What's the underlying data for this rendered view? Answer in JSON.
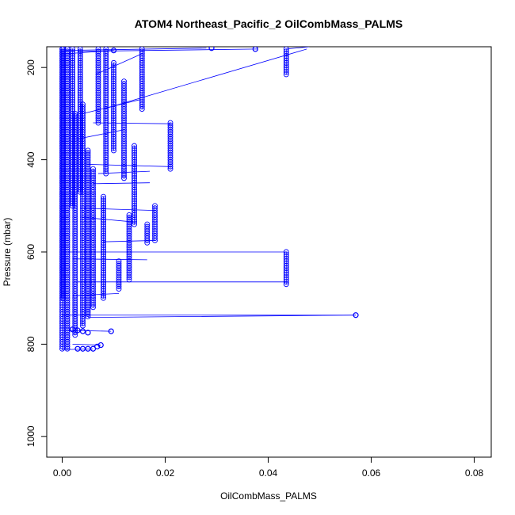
{
  "chart_data": {
    "type": "scatter",
    "title": "ATOM4 Northeast_Pacific_2 OilCombMass_PALMS",
    "xlabel": "OilCombMass_PALMS",
    "ylabel": "Pressure (mbar)",
    "xlim": [
      -0.003,
      0.0833
    ],
    "ylim": [
      1045,
      155
    ],
    "y_reversed": true,
    "x_ticks": [
      "0.00",
      "0.02",
      "0.04",
      "0.06",
      "0.08"
    ],
    "x_tick_values": [
      0,
      0.02,
      0.04,
      0.06,
      0.08
    ],
    "y_ticks": [
      "200",
      "400",
      "600",
      "800",
      "1000"
    ],
    "y_tick_values": [
      200,
      400,
      600,
      800,
      1000
    ],
    "grid": false,
    "marker": "open-circle",
    "connected": true,
    "series_color": "#0000ff",
    "columns": [
      {
        "x": 0.0,
        "pmin": 160,
        "pmax": 812
      },
      {
        "x": 0.0002,
        "pmin": 160,
        "pmax": 700
      },
      {
        "x": 0.001,
        "pmin": 160,
        "pmax": 810
      },
      {
        "x": 0.002,
        "pmin": 160,
        "pmax": 500
      },
      {
        "x": 0.0025,
        "pmin": 300,
        "pmax": 780
      },
      {
        "x": 0.0035,
        "pmin": 160,
        "pmax": 470
      },
      {
        "x": 0.004,
        "pmin": 280,
        "pmax": 760
      },
      {
        "x": 0.005,
        "pmin": 380,
        "pmax": 740
      },
      {
        "x": 0.006,
        "pmin": 420,
        "pmax": 720
      },
      {
        "x": 0.007,
        "pmin": 160,
        "pmax": 320
      },
      {
        "x": 0.008,
        "pmin": 480,
        "pmax": 700
      },
      {
        "x": 0.0085,
        "pmin": 160,
        "pmax": 430
      },
      {
        "x": 0.01,
        "pmin": 190,
        "pmax": 380
      },
      {
        "x": 0.011,
        "pmin": 620,
        "pmax": 680
      },
      {
        "x": 0.012,
        "pmin": 230,
        "pmax": 440
      },
      {
        "x": 0.013,
        "pmin": 520,
        "pmax": 660
      },
      {
        "x": 0.014,
        "pmin": 370,
        "pmax": 540
      },
      {
        "x": 0.0155,
        "pmin": 160,
        "pmax": 290
      },
      {
        "x": 0.0165,
        "pmin": 540,
        "pmax": 580
      },
      {
        "x": 0.018,
        "pmin": 500,
        "pmax": 575
      },
      {
        "x": 0.021,
        "pmin": 320,
        "pmax": 420
      },
      {
        "x": 0.0435,
        "pmin": 160,
        "pmax": 215
      },
      {
        "x": 0.0435,
        "pmin": 600,
        "pmax": 670
      }
    ],
    "connectors": [
      {
        "x1": 0.0435,
        "y1": 160,
        "x2": 0.048,
        "y2": 155
      },
      {
        "x1": 0.003,
        "y1": 165,
        "x2": 0.038,
        "y2": 160
      },
      {
        "x1": 0.0005,
        "y1": 163,
        "x2": 0.028,
        "y2": 158
      },
      {
        "x1": 0.001,
        "y1": 170,
        "x2": 0.01,
        "y2": 163
      },
      {
        "x1": 0.0065,
        "y1": 215,
        "x2": 0.0155,
        "y2": 170
      },
      {
        "x1": 0.008,
        "y1": 290,
        "x2": 0.0475,
        "y2": 160
      },
      {
        "x1": 0.004,
        "y1": 300,
        "x2": 0.015,
        "y2": 270
      },
      {
        "x1": 0.006,
        "y1": 320,
        "x2": 0.021,
        "y2": 322
      },
      {
        "x1": 0.003,
        "y1": 355,
        "x2": 0.012,
        "y2": 335
      },
      {
        "x1": 0.005,
        "y1": 410,
        "x2": 0.021,
        "y2": 415
      },
      {
        "x1": 0.007,
        "y1": 430,
        "x2": 0.017,
        "y2": 425
      },
      {
        "x1": 0.006,
        "y1": 452,
        "x2": 0.017,
        "y2": 450
      },
      {
        "x1": 0.0035,
        "y1": 505,
        "x2": 0.018,
        "y2": 510
      },
      {
        "x1": 0.004,
        "y1": 525,
        "x2": 0.014,
        "y2": 535
      },
      {
        "x1": 0.008,
        "y1": 578,
        "x2": 0.018,
        "y2": 575
      },
      {
        "x1": 0.0,
        "y1": 600,
        "x2": 0.0435,
        "y2": 600
      },
      {
        "x1": 0.002,
        "y1": 615,
        "x2": 0.0165,
        "y2": 617
      },
      {
        "x1": 0.003,
        "y1": 665,
        "x2": 0.0435,
        "y2": 665
      },
      {
        "x1": 0.002,
        "y1": 695,
        "x2": 0.011,
        "y2": 690
      },
      {
        "x1": 0.0,
        "y1": 737,
        "x2": 0.057,
        "y2": 737
      },
      {
        "x1": 0.005,
        "y1": 742,
        "x2": 0.057,
        "y2": 737
      },
      {
        "x1": 0.001,
        "y1": 770,
        "x2": 0.0095,
        "y2": 772
      },
      {
        "x1": 0.002,
        "y1": 800,
        "x2": 0.0075,
        "y2": 802
      },
      {
        "x1": 0.0,
        "y1": 812,
        "x2": 0.006,
        "y2": 810
      }
    ],
    "points": [
      {
        "x": 0.057,
        "y": 737
      },
      {
        "x": 0.0375,
        "y": 160
      },
      {
        "x": 0.029,
        "y": 158
      },
      {
        "x": 0.01,
        "y": 163
      },
      {
        "x": 0.0095,
        "y": 772
      },
      {
        "x": 0.0075,
        "y": 802
      },
      {
        "x": 0.0068,
        "y": 805
      },
      {
        "x": 0.006,
        "y": 810
      },
      {
        "x": 0.005,
        "y": 810
      },
      {
        "x": 0.004,
        "y": 810
      },
      {
        "x": 0.003,
        "y": 810
      },
      {
        "x": 0.003,
        "y": 770
      },
      {
        "x": 0.002,
        "y": 768
      },
      {
        "x": 0.004,
        "y": 772
      },
      {
        "x": 0.005,
        "y": 775
      }
    ]
  }
}
